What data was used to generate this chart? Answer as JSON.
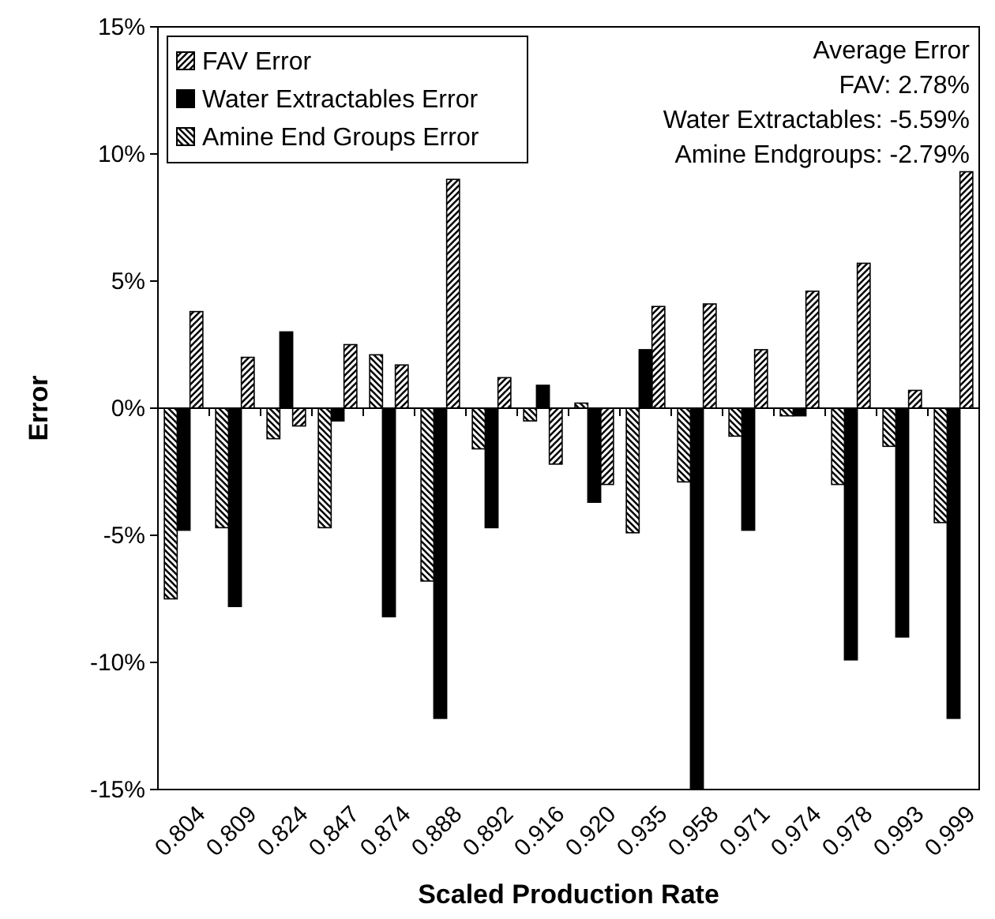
{
  "chart_data": {
    "type": "bar",
    "xlabel": "Scaled Production Rate",
    "ylabel": "Error",
    "categories": [
      "0.804",
      "0.809",
      "0.824",
      "0.847",
      "0.874",
      "0.888",
      "0.892",
      "0.916",
      "0.920",
      "0.935",
      "0.958",
      "0.971",
      "0.974",
      "0.978",
      "0.993",
      "0.999"
    ],
    "series": [
      {
        "name": "FAV Error",
        "color": "#000000",
        "values": [
          3.8,
          2.0,
          -0.7,
          2.5,
          1.7,
          9.0,
          1.2,
          -2.2,
          -3.0,
          4.0,
          4.1,
          2.3,
          4.6,
          5.7,
          0.7,
          9.3
        ]
      },
      {
        "name": "Water Extractables Error",
        "color": "#000000",
        "values": [
          -4.8,
          -7.8,
          3.0,
          -0.5,
          -8.2,
          -12.2,
          -4.7,
          0.9,
          -3.7,
          2.3,
          -15.0,
          -4.8,
          -0.3,
          -9.9,
          -9.0,
          -12.2
        ]
      },
      {
        "name": "Amine End Groups Error",
        "color": "#000000",
        "values": [
          -7.5,
          -4.7,
          -1.2,
          -4.7,
          2.1,
          -6.8,
          -1.6,
          -0.5,
          0.2,
          -4.9,
          -2.9,
          -1.1,
          -0.3,
          -3.0,
          -1.5,
          -4.5
        ]
      }
    ],
    "ylim": [
      -15,
      15
    ],
    "yticks": [
      {
        "value": -15,
        "label": "-15%"
      },
      {
        "value": -10,
        "label": "-10%"
      },
      {
        "value": -5,
        "label": "-5%"
      },
      {
        "value": 0,
        "label": "0%"
      },
      {
        "value": 5,
        "label": "5%"
      },
      {
        "value": 10,
        "label": "10%"
      },
      {
        "value": 15,
        "label": "15%"
      }
    ],
    "legend": "top left",
    "annotations": [
      "Average Error",
      "FAV: 2.78%",
      "Water Extractables: -5.59%",
      "Amine Endgroups: -2.79%"
    ]
  }
}
